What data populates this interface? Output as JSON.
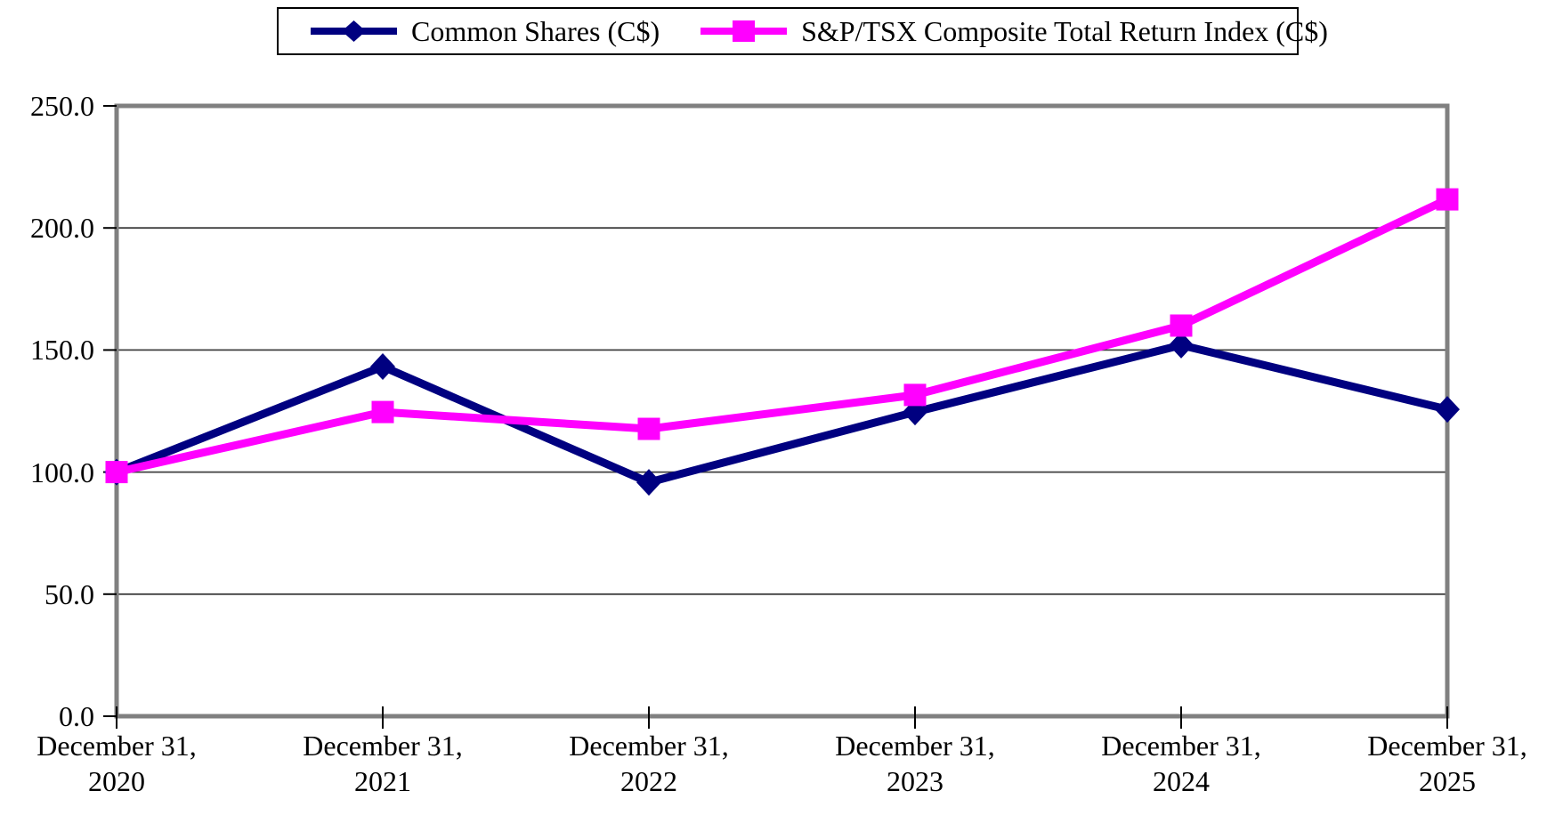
{
  "chart_data": {
    "type": "line",
    "title": "",
    "xlabel": "",
    "ylabel": "",
    "categories": [
      {
        "line1": "December 31,",
        "line2": "2020"
      },
      {
        "line1": "December 31,",
        "line2": "2021"
      },
      {
        "line1": "December 31,",
        "line2": "2022"
      },
      {
        "line1": "December 31,",
        "line2": "2023"
      },
      {
        "line1": "December 31,",
        "line2": "2024"
      },
      {
        "line1": "December 31,",
        "line2": "2025"
      }
    ],
    "series": [
      {
        "name": "Common Shares (C$)",
        "color": "#000080",
        "marker": "diamond",
        "values": [
          100.0,
          143.2,
          95.8,
          124.6,
          152.0,
          125.7
        ]
      },
      {
        "name": "S&P/TSX Composite Total Return Index (C$)",
        "color": "#FF00FF",
        "marker": "square",
        "values": [
          100.0,
          124.6,
          117.7,
          131.6,
          160.0,
          211.7
        ]
      }
    ],
    "ylim": [
      0,
      250
    ],
    "ytick_step": 50,
    "ytick_labels": [
      "0.0",
      "50.0",
      "100.0",
      "150.0",
      "200.0",
      "250.0"
    ],
    "grid": true,
    "legend_position": "top-center"
  },
  "colors": {
    "background": "#FFFFFF",
    "frame": "#808080",
    "gridline": "#404040",
    "tick": "#000000",
    "text": "#000000",
    "legend_border": "#000000"
  }
}
